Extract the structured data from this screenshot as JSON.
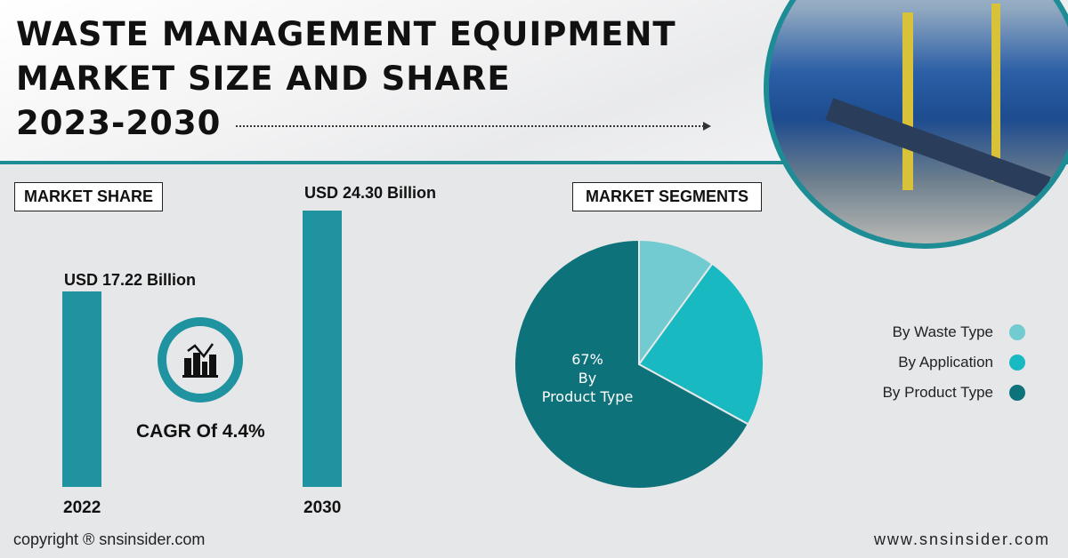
{
  "header": {
    "title_lines": [
      "WASTE MANAGEMENT EQUIPMENT",
      "MARKET SIZE AND SHARE",
      "2023-2030"
    ]
  },
  "market_share": {
    "label": "MARKET SHARE",
    "cagr": "CAGR Of 4.4%",
    "icon": "bar-line-chart-icon"
  },
  "market_segments": {
    "label": "MARKET SEGMENTS"
  },
  "chart_data": [
    {
      "type": "bar",
      "categories": [
        "2022",
        "2030"
      ],
      "values": [
        17.22,
        24.3
      ],
      "data_labels": [
        "USD 17.22 Billion",
        "USD 24.30 Billion"
      ],
      "unit": "USD Billion",
      "color": "#1f939f"
    },
    {
      "type": "pie",
      "categories": [
        "By Waste Type",
        "By Application",
        "By Product Type"
      ],
      "values": [
        10,
        23,
        67
      ],
      "colors": [
        "#72cbd0",
        "#18b9c0",
        "#0e727b"
      ],
      "data_labels": {
        "By Product Type": [
          "67%",
          "By",
          "Product Type"
        ]
      },
      "legend": "right"
    }
  ],
  "footer": {
    "copyright": "copyright ® snsinsider.com",
    "website": "www.snsinsider.com"
  }
}
